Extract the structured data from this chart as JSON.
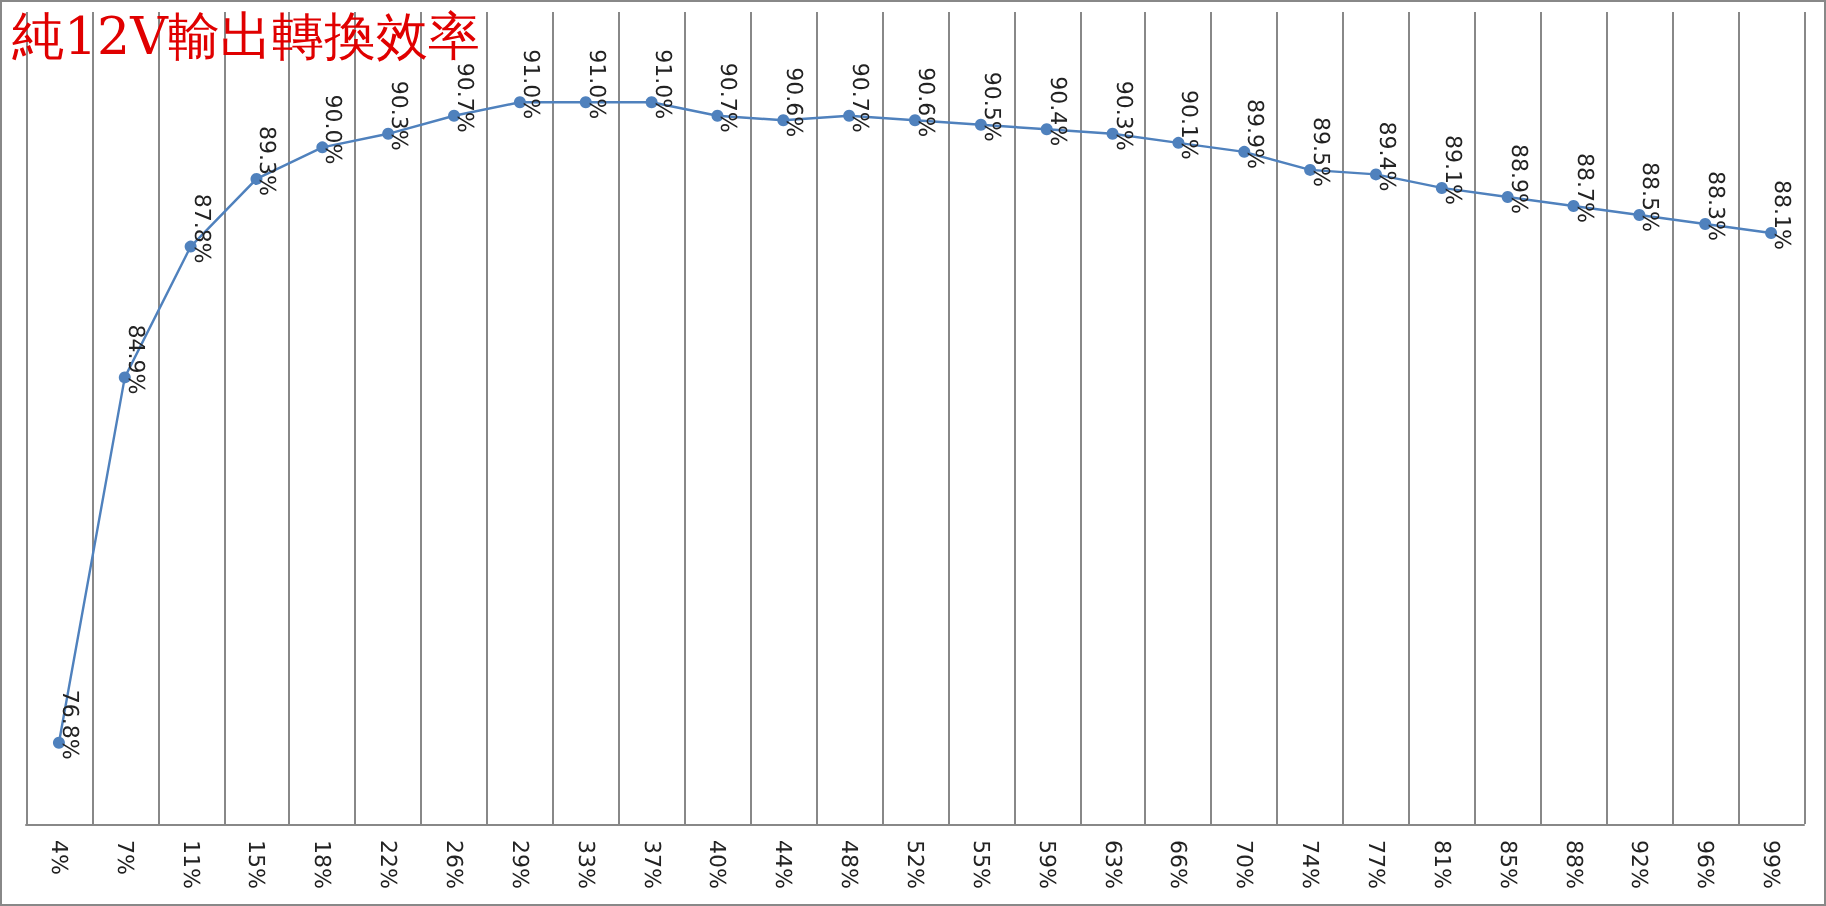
{
  "chart_data": {
    "type": "line",
    "title": "純12V輸出轉換效率",
    "categories": [
      "4%",
      "7%",
      "11%",
      "15%",
      "18%",
      "22%",
      "26%",
      "29%",
      "33%",
      "37%",
      "40%",
      "44%",
      "48%",
      "52%",
      "55%",
      "59%",
      "63%",
      "66%",
      "70%",
      "74%",
      "77%",
      "81%",
      "85%",
      "88%",
      "92%",
      "96%",
      "99%"
    ],
    "series": [
      {
        "color": "#4f81bd",
        "values": [
          76.8,
          84.9,
          87.8,
          89.3,
          90.0,
          90.3,
          90.7,
          91.0,
          91.0,
          91.0,
          90.7,
          90.6,
          90.7,
          90.6,
          90.5,
          90.4,
          90.3,
          90.1,
          89.9,
          89.5,
          89.4,
          89.1,
          88.9,
          88.7,
          88.5,
          88.3,
          88.1
        ],
        "value_labels": [
          "76.8%",
          "84.9%",
          "87.8%",
          "89.3%",
          "90.0%",
          "90.3%",
          "90.7%",
          "91.0%",
          "91.0%",
          "91.0%",
          "90.7%",
          "90.6%",
          "90.7%",
          "90.6%",
          "90.5%",
          "90.4%",
          "90.3%",
          "90.1%",
          "89.9%",
          "89.5%",
          "89.4%",
          "89.1%",
          "88.9%",
          "88.7%",
          "88.5%",
          "88.3%",
          "88.1%"
        ]
      }
    ],
    "grid": "x",
    "tick_labels": "x",
    "marker": "circle",
    "line_style": "solid"
  }
}
